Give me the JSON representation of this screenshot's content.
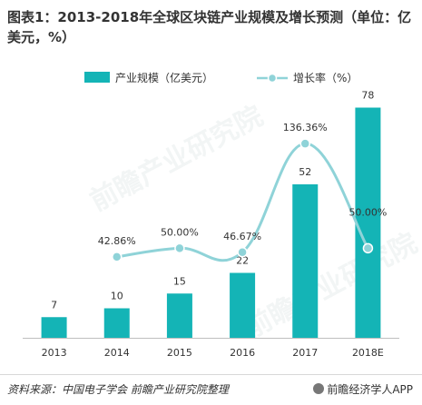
{
  "title": "图表1：2013-2018年全球区块链产业规模及增长预测（单位：亿美元，%）",
  "legend": {
    "bar_label": "产业规模（亿美元）",
    "line_label": "增长率（%）"
  },
  "colors": {
    "bar": "#14b4b6",
    "line": "#8fd3d8",
    "marker_fill": "#8fd3d8",
    "marker_stroke": "#ffffff"
  },
  "chart_data": {
    "type": "bar",
    "categories": [
      "2013",
      "2014",
      "2015",
      "2016",
      "2017",
      "2018E"
    ],
    "series": [
      {
        "name": "产业规模（亿美元）",
        "type": "bar",
        "values": [
          7,
          10,
          15,
          22,
          52,
          78
        ],
        "labels": [
          "7",
          "10",
          "15",
          "22",
          "52",
          "78"
        ]
      },
      {
        "name": "增长率（%）",
        "type": "line",
        "values": [
          null,
          42.86,
          50.0,
          46.67,
          136.36,
          50.0
        ],
        "labels": [
          "",
          "42.86%",
          "50.00%",
          "46.67%",
          "136.36%",
          "50.00%"
        ]
      }
    ],
    "ylim_bar": [
      0,
      80
    ],
    "ylim_line": [
      0,
      150
    ],
    "grid": false,
    "legend_position": "top"
  },
  "footer": {
    "source": "资料来源：中国电子学会  前瞻产业研究院整理",
    "brand": "前瞻经济学人APP"
  },
  "watermark": "前瞻产业研究院"
}
